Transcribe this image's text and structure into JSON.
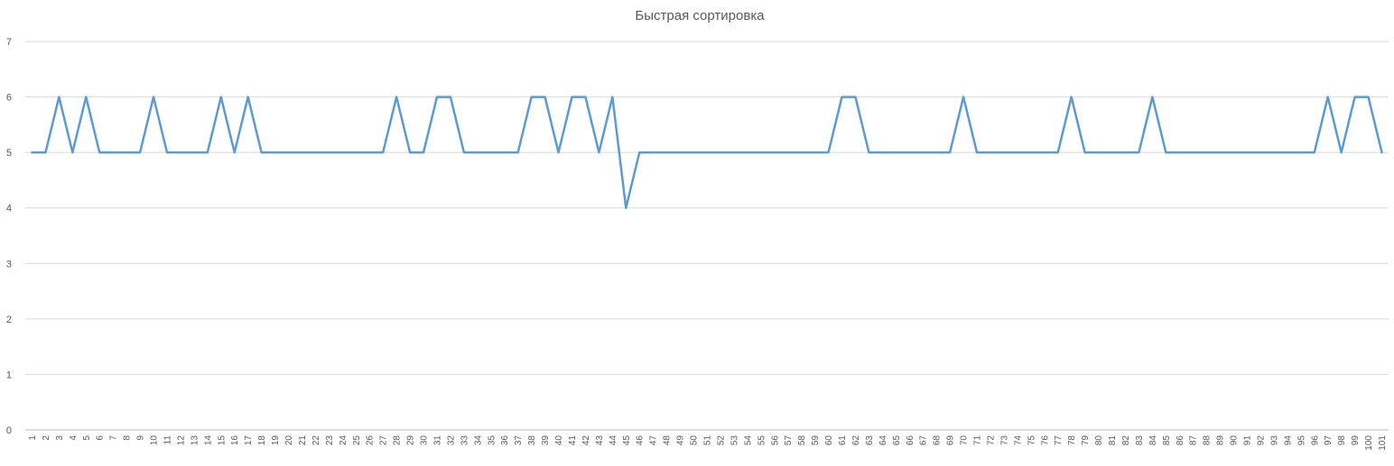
{
  "chart_data": {
    "type": "line",
    "title": "Быстрая сортировка",
    "xlabel": "",
    "ylabel": "",
    "ylim": [
      0,
      7
    ],
    "yticks": [
      0,
      1,
      2,
      3,
      4,
      5,
      6,
      7
    ],
    "grid": true,
    "legend": "none",
    "x": [
      1,
      2,
      3,
      4,
      5,
      6,
      7,
      8,
      9,
      10,
      11,
      12,
      13,
      14,
      15,
      16,
      17,
      18,
      19,
      20,
      21,
      22,
      23,
      24,
      25,
      26,
      27,
      28,
      29,
      30,
      31,
      32,
      33,
      34,
      35,
      36,
      37,
      38,
      39,
      40,
      41,
      42,
      43,
      44,
      45,
      46,
      47,
      48,
      49,
      50,
      51,
      52,
      53,
      54,
      55,
      56,
      57,
      58,
      59,
      60,
      61,
      62,
      63,
      64,
      65,
      66,
      67,
      68,
      69,
      70,
      71,
      72,
      73,
      74,
      75,
      76,
      77,
      78,
      79,
      80,
      81,
      82,
      83,
      84,
      85,
      86,
      87,
      88,
      89,
      90,
      91,
      92,
      93,
      94,
      95,
      96,
      97,
      98,
      99,
      100,
      101
    ],
    "series": [
      {
        "color": "#5b9bd5",
        "values": [
          5,
          5,
          6,
          5,
          6,
          5,
          5,
          5,
          5,
          6,
          5,
          5,
          5,
          5,
          6,
          5,
          6,
          5,
          5,
          5,
          5,
          5,
          5,
          5,
          5,
          5,
          5,
          6,
          5,
          5,
          6,
          6,
          5,
          5,
          5,
          5,
          5,
          6,
          6,
          5,
          6,
          6,
          5,
          6,
          4,
          5,
          5,
          5,
          5,
          5,
          5,
          5,
          5,
          5,
          5,
          5,
          5,
          5,
          5,
          5,
          6,
          6,
          5,
          5,
          5,
          5,
          5,
          5,
          5,
          6,
          5,
          5,
          5,
          5,
          5,
          5,
          5,
          6,
          5,
          5,
          5,
          5,
          5,
          6,
          5,
          5,
          5,
          5,
          5,
          5,
          5,
          5,
          5,
          5,
          5,
          5,
          6,
          5,
          6,
          6,
          5
        ]
      }
    ]
  }
}
